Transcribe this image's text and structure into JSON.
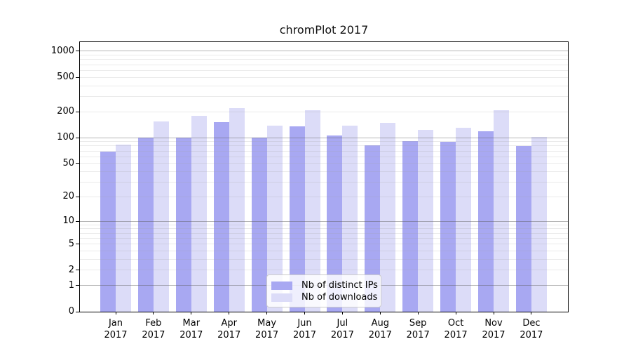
{
  "chart_data": {
    "type": "bar",
    "title": "chromPlot 2017",
    "months": [
      "Jan",
      "Feb",
      "Mar",
      "Apr",
      "May",
      "Jun",
      "Jul",
      "Aug",
      "Sep",
      "Oct",
      "Nov",
      "Dec"
    ],
    "year": "2017",
    "categories": [
      "Jan 2017",
      "Feb 2017",
      "Mar 2017",
      "Apr 2017",
      "May 2017",
      "Jun 2017",
      "Jul 2017",
      "Aug 2017",
      "Sep 2017",
      "Oct 2017",
      "Nov 2017",
      "Dec 2017"
    ],
    "series": [
      {
        "name": "Nb of distinct IPs",
        "color": "#a8a8f2",
        "values": [
          69,
          100,
          100,
          152,
          100,
          136,
          107,
          81,
          92,
          89,
          119,
          80
        ]
      },
      {
        "name": "Nb of downloads",
        "color": "#dcdcf8",
        "values": [
          83,
          154,
          180,
          221,
          137,
          210,
          139,
          149,
          124,
          130,
          207,
          103
        ]
      }
    ],
    "yscale": "log1p",
    "yticks": [
      0,
      1,
      2,
      5,
      10,
      20,
      50,
      100,
      200,
      500,
      1000
    ],
    "ylim": [
      0,
      1270
    ],
    "xlabel": "",
    "ylabel": "",
    "grid": "both",
    "legend_position": "lower center",
    "colors": {
      "axis": "#000000",
      "major_grid": "#b9b9b9",
      "minor_grid": "#e7e7e7",
      "background": "#ffffff"
    }
  }
}
